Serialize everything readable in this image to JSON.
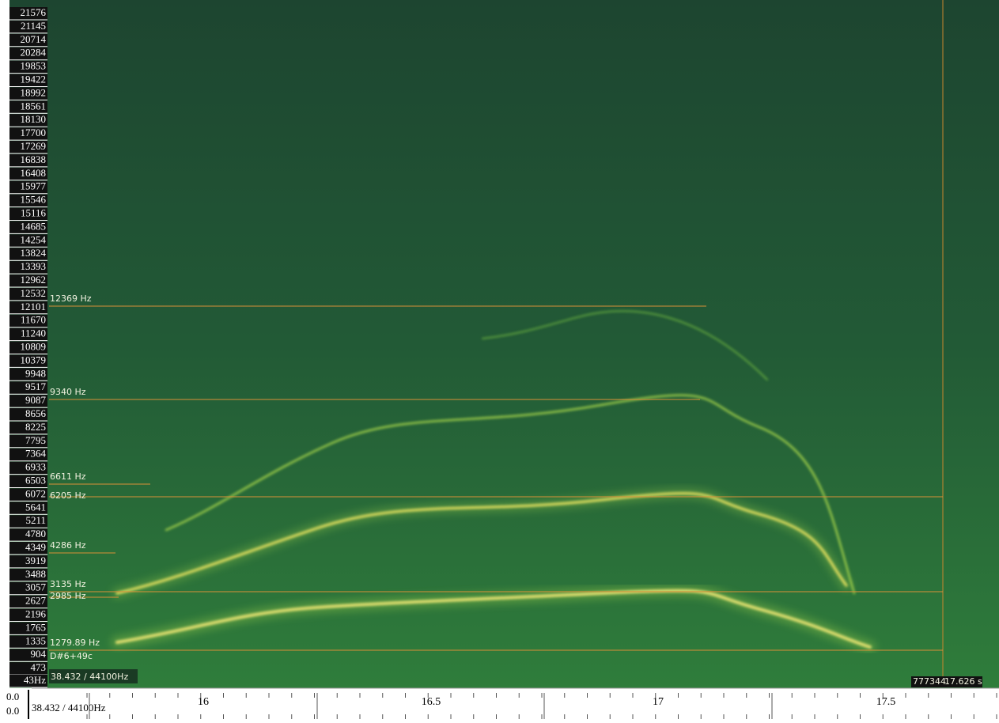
{
  "frequency_axis": {
    "labels": [
      21576,
      21145,
      20714,
      20284,
      19853,
      19422,
      18992,
      18561,
      18130,
      17700,
      17269,
      16838,
      16408,
      15977,
      15546,
      15116,
      14685,
      14254,
      13824,
      13393,
      12962,
      12532,
      12101,
      11670,
      11240,
      10809,
      10379,
      9948,
      9517,
      9087,
      8656,
      8225,
      7795,
      7364,
      6933,
      6503,
      6072,
      5641,
      5211,
      4780,
      4349,
      3919,
      3488,
      3057,
      2627,
      2196,
      1765,
      1335,
      904,
      473,
      "43Hz"
    ]
  },
  "markers": [
    "12369 Hz",
    "9340 Hz",
    "6611 Hz",
    "6205 Hz",
    "4286 Hz",
    "3135 Hz",
    "2985 Hz",
    "1279.89 Hz"
  ],
  "note": "D#6+49c",
  "cursor_readout": "38.432 / 44100Hz",
  "sample_position": "777344",
  "time_position": "17.626 s",
  "timeline": {
    "levels": [
      "0.0",
      "0.0"
    ],
    "readout": "38.432 / 44100Hz",
    "labels": [
      "16",
      "16.5",
      "17",
      "17.5"
    ]
  }
}
